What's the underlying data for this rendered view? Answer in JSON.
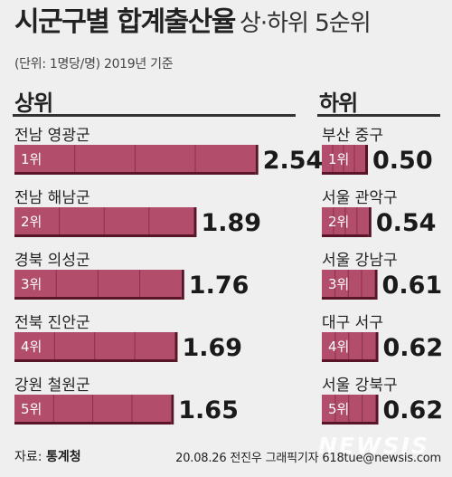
{
  "header": {
    "title_main": "시군구별 합계출산율",
    "title_sub": "상·하위 5순위",
    "unit_note": "(단위: 1명당/명) 2019년 기준"
  },
  "footer": {
    "source_label": "자료:",
    "source_name": "통계청",
    "credit": "20.08.26 전진우 그래픽기자 618tue@newsis.com",
    "watermark": "NEWSIS"
  },
  "colors": {
    "bar_fill": "#b24e6c",
    "bar_stroke": "#5a1428",
    "bar_divider": "#8a2f4c"
  },
  "chart_data": [
    {
      "type": "bar",
      "title": "상위",
      "categories": [
        "전남 영광군",
        "전남 해남군",
        "경북 의성군",
        "전북 진안군",
        "강원 철원군"
      ],
      "ranks": [
        "1위",
        "2위",
        "3위",
        "4위",
        "5위"
      ],
      "values": [
        2.54,
        1.89,
        1.76,
        1.69,
        1.65
      ],
      "value_labels": [
        "2.54",
        "1.89",
        "1.76",
        "1.69",
        "1.65"
      ]
    },
    {
      "type": "bar",
      "title": "하위",
      "categories": [
        "부산 중구",
        "서울 관악구",
        "서울 강남구",
        "대구 서구",
        "서울 강북구"
      ],
      "ranks": [
        "1위",
        "2위",
        "3위",
        "4위",
        "5위"
      ],
      "values": [
        0.5,
        0.54,
        0.61,
        0.62,
        0.62
      ],
      "value_labels": [
        "0.50",
        "0.54",
        "0.61",
        "0.62",
        "0.62"
      ]
    }
  ]
}
